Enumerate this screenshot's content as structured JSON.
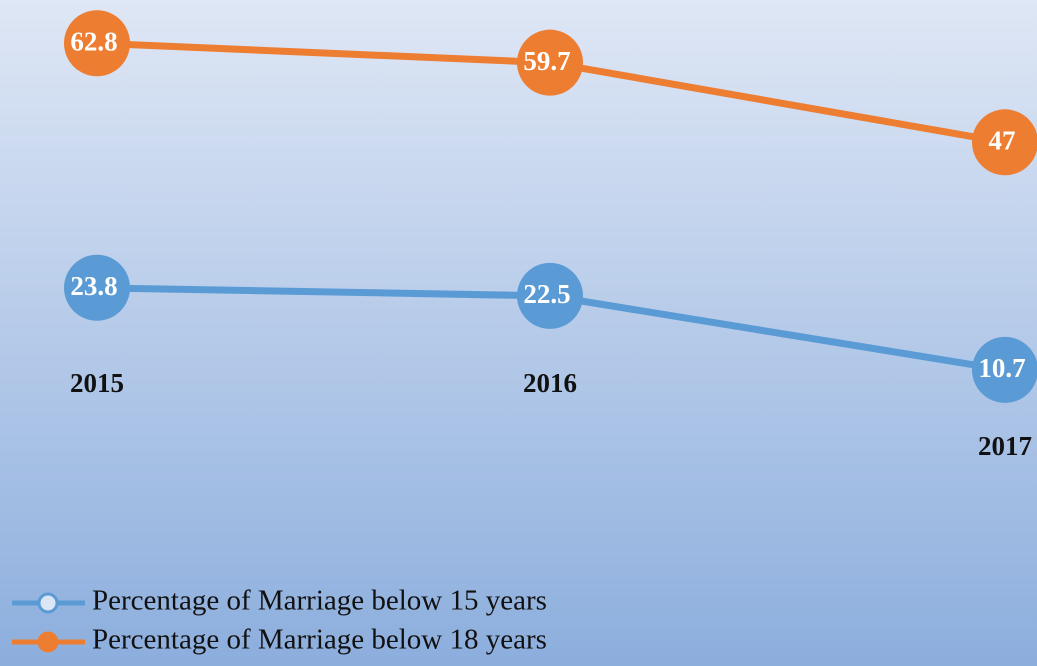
{
  "chart_data": {
    "type": "line",
    "categories": [
      "2015",
      "2016",
      "2017"
    ],
    "series": [
      {
        "name": "Percentage of Marriage below 15 years",
        "color": "#5b9bd5",
        "values": [
          23.8,
          22.5,
          10.7
        ]
      },
      {
        "name": "Percentage of Marriage below 18 years",
        "color": "#ed7d31",
        "values": [
          62.8,
          59.7,
          47
        ]
      }
    ]
  }
}
